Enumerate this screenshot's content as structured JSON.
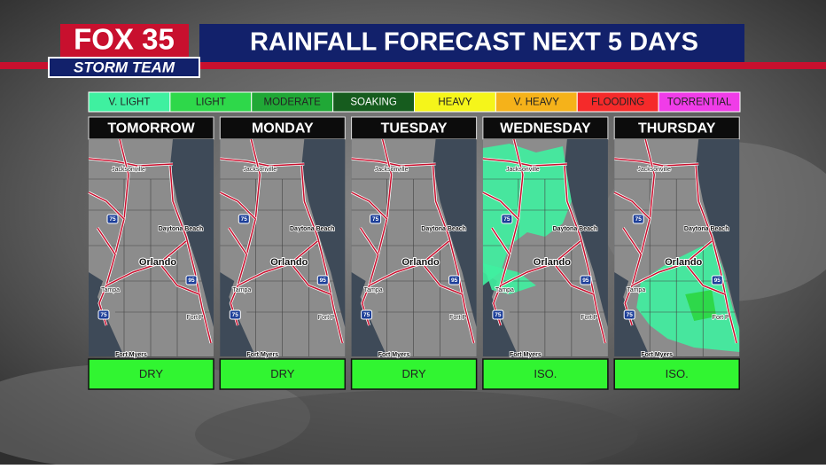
{
  "header": {
    "logo_top": "FOX 35",
    "logo_bottom": "STORM TEAM",
    "title": "RAINFALL FORECAST NEXT 5 DAYS"
  },
  "legend": [
    {
      "label": "V. LIGHT",
      "color": "#3ff0a0"
    },
    {
      "label": "LIGHT",
      "color": "#2ed84a"
    },
    {
      "label": "MODERATE",
      "color": "#20a836"
    },
    {
      "label": "SOAKING",
      "color": "#165c1e"
    },
    {
      "label": "HEAVY",
      "color": "#f5f51a"
    },
    {
      "label": "V. HEAVY",
      "color": "#f5b21a"
    },
    {
      "label": "FLOODING",
      "color": "#f52a2a"
    },
    {
      "label": "TORRENTIAL",
      "color": "#f03ce8"
    }
  ],
  "map_labels": [
    "Jacksonville",
    "Daytona Beach",
    "Orlando",
    "Tampa",
    "Fort P",
    "Fort Myers"
  ],
  "shields": [
    "75",
    "95"
  ],
  "panels": [
    {
      "day": "TOMORROW",
      "outlook": "DRY"
    },
    {
      "day": "MONDAY",
      "outlook": "DRY"
    },
    {
      "day": "TUESDAY",
      "outlook": "DRY"
    },
    {
      "day": "WEDNESDAY",
      "outlook": "ISO."
    },
    {
      "day": "THURSDAY",
      "outlook": "ISO."
    }
  ]
}
